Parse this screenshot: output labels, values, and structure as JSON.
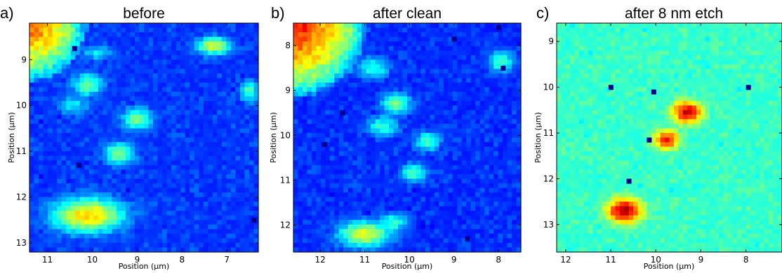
{
  "colors": {
    "colormap": [
      "#00008f",
      "#0000ff",
      "#0080ff",
      "#00ffff",
      "#80ff80",
      "#ffff00",
      "#ff8000",
      "#ff0000",
      "#800000"
    ],
    "frame": "#000000"
  },
  "chart_data": [
    {
      "type": "heatmap",
      "panel_letter": "a)",
      "title": "before",
      "xlabel": "Position (μm)",
      "ylabel": "Position (μm)",
      "xlim": [
        11.4,
        6.3
      ],
      "ylim": [
        8.2,
        13.2
      ],
      "xticks": [
        11,
        10,
        9,
        8,
        7
      ],
      "yticks": [
        9,
        10,
        11,
        12,
        13
      ],
      "grid": false,
      "background_level": 0.15,
      "features": [
        {
          "kind": "corner-region",
          "corner": "top-left",
          "x": 11.4,
          "y": 8.2,
          "radius_um": 1.3,
          "peak": 0.82
        },
        {
          "kind": "blob",
          "x": 7.3,
          "y": 8.7,
          "rx_um": 0.4,
          "ry_um": 0.2,
          "peak": 0.58
        },
        {
          "kind": "blob",
          "x": 9.9,
          "y": 8.85,
          "rx_um": 0.35,
          "ry_um": 0.18,
          "peak": 0.35
        },
        {
          "kind": "blob",
          "x": 10.1,
          "y": 9.55,
          "rx_um": 0.35,
          "ry_um": 0.25,
          "peak": 0.48
        },
        {
          "kind": "blob",
          "x": 10.4,
          "y": 10.0,
          "rx_um": 0.35,
          "ry_um": 0.25,
          "peak": 0.35
        },
        {
          "kind": "blob",
          "x": 9.0,
          "y": 10.3,
          "rx_um": 0.35,
          "ry_um": 0.25,
          "peak": 0.5
        },
        {
          "kind": "blob",
          "x": 9.4,
          "y": 11.05,
          "rx_um": 0.35,
          "ry_um": 0.25,
          "peak": 0.52
        },
        {
          "kind": "blob",
          "x": 10.1,
          "y": 12.4,
          "rx_um": 0.8,
          "ry_um": 0.38,
          "peak": 0.68
        },
        {
          "kind": "blob",
          "x": 6.5,
          "y": 9.7,
          "rx_um": 0.2,
          "ry_um": 0.25,
          "peak": 0.45
        },
        {
          "kind": "dot",
          "x": 10.4,
          "y": 8.75,
          "value": 0.0
        },
        {
          "kind": "dot",
          "x": 10.3,
          "y": 11.3,
          "value": 0.0
        },
        {
          "kind": "dot",
          "x": 6.4,
          "y": 12.5,
          "value": 0.0
        }
      ]
    },
    {
      "type": "heatmap",
      "panel_letter": "b)",
      "title": "after clean",
      "xlabel": "Position (μm)",
      "ylabel": "Position (μm)",
      "xlim": [
        12.6,
        7.5
      ],
      "ylim": [
        7.5,
        12.6
      ],
      "xticks": [
        12,
        11,
        10,
        9,
        8
      ],
      "yticks": [
        8,
        9,
        10,
        11,
        12
      ],
      "grid": false,
      "background_level": 0.14,
      "features": [
        {
          "kind": "corner-region",
          "corner": "top-left",
          "x": 12.6,
          "y": 7.5,
          "radius_um": 1.7,
          "peak": 0.9
        },
        {
          "kind": "blob",
          "x": 7.95,
          "y": 8.35,
          "rx_um": 0.3,
          "ry_um": 0.25,
          "peak": 0.45
        },
        {
          "kind": "blob",
          "x": 10.8,
          "y": 8.5,
          "rx_um": 0.35,
          "ry_um": 0.25,
          "peak": 0.42
        },
        {
          "kind": "blob",
          "x": 10.3,
          "y": 9.3,
          "rx_um": 0.35,
          "ry_um": 0.25,
          "peak": 0.48
        },
        {
          "kind": "blob",
          "x": 10.6,
          "y": 9.8,
          "rx_um": 0.35,
          "ry_um": 0.25,
          "peak": 0.42
        },
        {
          "kind": "blob",
          "x": 9.6,
          "y": 10.15,
          "rx_um": 0.3,
          "ry_um": 0.22,
          "peak": 0.45
        },
        {
          "kind": "blob",
          "x": 9.9,
          "y": 10.85,
          "rx_um": 0.3,
          "ry_um": 0.22,
          "peak": 0.45
        },
        {
          "kind": "blob",
          "x": 11.0,
          "y": 12.2,
          "rx_um": 0.6,
          "ry_um": 0.3,
          "peak": 0.6
        },
        {
          "kind": "blob",
          "x": 10.4,
          "y": 11.95,
          "rx_um": 0.4,
          "ry_um": 0.22,
          "peak": 0.42
        },
        {
          "kind": "dot",
          "x": 11.5,
          "y": 9.5,
          "value": 0.0
        },
        {
          "kind": "dot",
          "x": 11.9,
          "y": 10.2,
          "value": 0.0
        },
        {
          "kind": "dot",
          "x": 7.9,
          "y": 8.5,
          "value": 0.0
        },
        {
          "kind": "dot",
          "x": 8.0,
          "y": 7.6,
          "value": 0.0
        },
        {
          "kind": "dot",
          "x": 9.0,
          "y": 7.85,
          "value": 0.0
        },
        {
          "kind": "dot",
          "x": 8.7,
          "y": 12.3,
          "value": 0.0
        }
      ]
    },
    {
      "type": "heatmap",
      "panel_letter": "c)",
      "title": "after 8 nm etch",
      "xlabel": "Position (μm)",
      "ylabel": "Position (μm)",
      "xlim": [
        12.2,
        7.2
      ],
      "ylim": [
        8.6,
        13.6
      ],
      "xticks": [
        12,
        11,
        10,
        9,
        8
      ],
      "yticks": [
        9,
        10,
        11,
        12,
        13
      ],
      "grid": false,
      "background_level": 0.4,
      "features": [
        {
          "kind": "blob",
          "x": 9.3,
          "y": 10.55,
          "rx_um": 0.35,
          "ry_um": 0.25,
          "peak": 0.92
        },
        {
          "kind": "blob",
          "x": 9.75,
          "y": 11.15,
          "rx_um": 0.3,
          "ry_um": 0.22,
          "peak": 0.85
        },
        {
          "kind": "blob",
          "x": 10.7,
          "y": 12.7,
          "rx_um": 0.4,
          "ry_um": 0.28,
          "peak": 0.95
        },
        {
          "kind": "blob",
          "x": 10.5,
          "y": 11.0,
          "rx_um": 0.9,
          "ry_um": 1.2,
          "peak": 0.33
        },
        {
          "kind": "blob",
          "x": 8.5,
          "y": 10.8,
          "rx_um": 0.5,
          "ry_um": 0.6,
          "peak": 0.33
        },
        {
          "kind": "dot",
          "x": 11.0,
          "y": 10.0,
          "value": 0.0
        },
        {
          "kind": "dot",
          "x": 10.05,
          "y": 10.1,
          "value": 0.0
        },
        {
          "kind": "dot",
          "x": 7.95,
          "y": 10.0,
          "value": 0.0
        },
        {
          "kind": "dot",
          "x": 10.15,
          "y": 11.15,
          "value": 0.0
        },
        {
          "kind": "dot",
          "x": 10.6,
          "y": 12.05,
          "value": 0.0
        }
      ]
    }
  ]
}
